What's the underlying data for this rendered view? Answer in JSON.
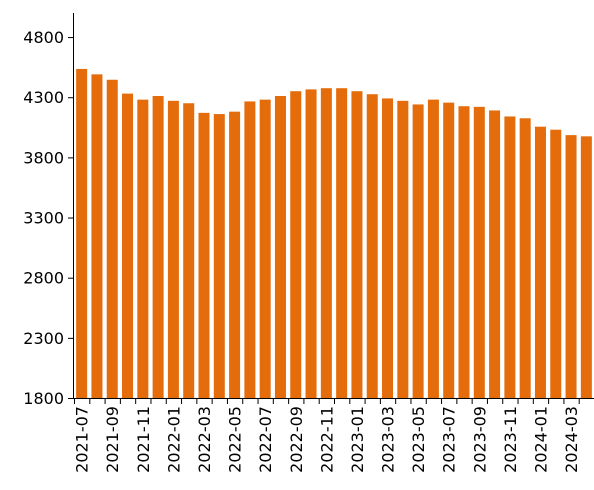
{
  "chart_data": {
    "type": "bar",
    "title": "",
    "xlabel": "",
    "ylabel": "",
    "ylim": [
      1800,
      5000
    ],
    "yticks": [
      1800,
      2300,
      2800,
      3300,
      3800,
      4300,
      4800
    ],
    "grid": false,
    "legend": "none",
    "bar_color": "#E46C0A",
    "categories": [
      "2021-07",
      "2021-08",
      "2021-09",
      "2021-10",
      "2021-11",
      "2021-12",
      "2022-01",
      "2022-02",
      "2022-03",
      "2022-04",
      "2022-05",
      "2022-06",
      "2022-07",
      "2022-08",
      "2022-09",
      "2022-10",
      "2022-11",
      "2022-12",
      "2023-01",
      "2023-02",
      "2023-03",
      "2023-04",
      "2023-05",
      "2023-06",
      "2023-07",
      "2023-08",
      "2023-09",
      "2023-10",
      "2023-11",
      "2023-12",
      "2024-01",
      "2024-02",
      "2024-03",
      "2024-04"
    ],
    "xtick_labels": [
      "2021-07",
      "2021-09",
      "2021-11",
      "2022-01",
      "2022-03",
      "2022-05",
      "2022-07",
      "2022-09",
      "2022-11",
      "2023-01",
      "2023-03",
      "2023-05",
      "2023-07",
      "2023-09",
      "2023-11",
      "2024-01",
      "2024-03"
    ],
    "values": [
      4535,
      4490,
      4445,
      4330,
      4280,
      4310,
      4270,
      4250,
      4170,
      4160,
      4180,
      4265,
      4280,
      4310,
      4350,
      4365,
      4375,
      4375,
      4350,
      4325,
      4290,
      4270,
      4240,
      4280,
      4255,
      4225,
      4220,
      4190,
      4140,
      4125,
      4055,
      4030,
      3985,
      3975
    ]
  }
}
